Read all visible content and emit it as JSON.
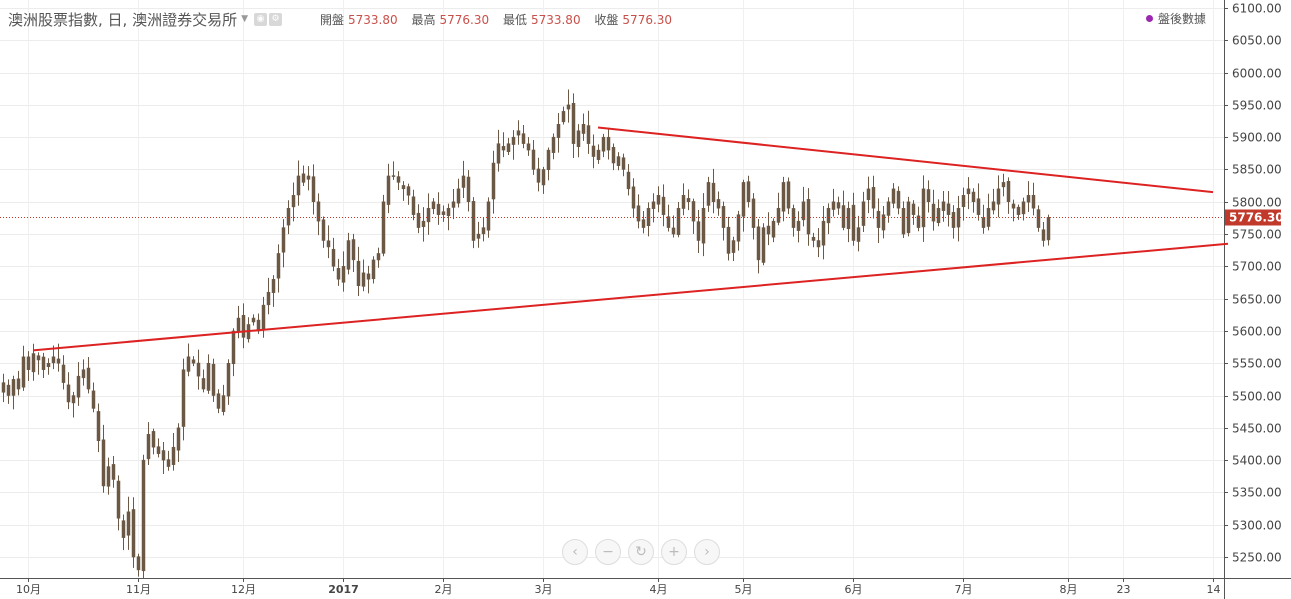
{
  "header": {
    "title": "澳洲股票指數, 日, 澳洲證券交易所",
    "open_label": "開盤",
    "open_value": "5733.80",
    "high_label": "最高",
    "high_value": "5776.30",
    "low_label": "最低",
    "low_value": "5733.80",
    "close_label": "收盤",
    "close_value": "5776.30"
  },
  "legend": {
    "label": "盤後數據"
  },
  "price_tag": "5776.30",
  "colors": {
    "candle": "#6b5845",
    "trendline": "#dd2222",
    "price_line": "#c0392b",
    "price_tag_bg": "#c0392b",
    "legend_dot": "#9c27b0"
  },
  "icons": {
    "zoom": [
      "chevron-left-icon",
      "minus-icon",
      "reset-icon",
      "plus-icon",
      "chevron-right-icon"
    ]
  },
  "chart_data": {
    "type": "candlestick",
    "y_axis": {
      "min": 5220,
      "max": 6110,
      "ticks": [
        "6100.00",
        "6050.00",
        "6000.00",
        "5950.00",
        "5900.00",
        "5850.00",
        "5800.00",
        "5750.00",
        "5700.00",
        "5650.00",
        "5600.00",
        "5550.00",
        "5500.00",
        "5450.00",
        "5400.00",
        "5350.00",
        "5300.00",
        "5250.00"
      ]
    },
    "x_axis": {
      "labels": [
        {
          "t": "10月",
          "i": 5,
          "bold": false
        },
        {
          "t": "11月",
          "i": 27,
          "bold": false
        },
        {
          "t": "12月",
          "i": 48,
          "bold": false
        },
        {
          "t": "2017",
          "i": 68,
          "bold": true
        },
        {
          "t": "2月",
          "i": 88,
          "bold": false
        },
        {
          "t": "3月",
          "i": 108,
          "bold": false
        },
        {
          "t": "4月",
          "i": 131,
          "bold": false
        },
        {
          "t": "5月",
          "i": 148,
          "bold": false
        },
        {
          "t": "6月",
          "i": 170,
          "bold": false
        },
        {
          "t": "7月",
          "i": 192,
          "bold": false
        },
        {
          "t": "8月",
          "i": 213,
          "bold": false
        },
        {
          "t": "23",
          "i": 224,
          "bold": false
        },
        {
          "t": "14",
          "i": 242,
          "bold": false
        }
      ]
    },
    "closes": [
      5520,
      5500,
      5525,
      5510,
      5560,
      5540,
      5565,
      5555,
      5540,
      5550,
      5560,
      5550,
      5520,
      5490,
      5500,
      5530,
      5540,
      5510,
      5480,
      5430,
      5360,
      5390,
      5370,
      5310,
      5280,
      5320,
      5250,
      5230,
      5400,
      5440,
      5420,
      5410,
      5400,
      5390,
      5420,
      5450,
      5540,
      5560,
      5550,
      5530,
      5510,
      5550,
      5500,
      5480,
      5500,
      5550,
      5600,
      5620,
      5590,
      5610,
      5620,
      5600,
      5640,
      5660,
      5680,
      5720,
      5760,
      5790,
      5810,
      5840,
      5830,
      5840,
      5800,
      5770,
      5740,
      5730,
      5700,
      5680,
      5700,
      5740,
      5710,
      5670,
      5690,
      5680,
      5710,
      5720,
      5800,
      5840,
      5840,
      5830,
      5820,
      5810,
      5780,
      5760,
      5770,
      5790,
      5800,
      5780,
      5780,
      5790,
      5800,
      5820,
      5840,
      5800,
      5740,
      5750,
      5760,
      5800,
      5860,
      5890,
      5880,
      5890,
      5900,
      5910,
      5890,
      5880,
      5850,
      5830,
      5850,
      5880,
      5900,
      5920,
      5940,
      5950,
      5890,
      5910,
      5920,
      5890,
      5870,
      5880,
      5900,
      5880,
      5860,
      5870,
      5850,
      5820,
      5790,
      5770,
      5760,
      5790,
      5800,
      5810,
      5780,
      5760,
      5750,
      5790,
      5810,
      5800,
      5770,
      5740,
      5790,
      5830,
      5800,
      5790,
      5760,
      5720,
      5740,
      5780,
      5830,
      5800,
      5760,
      5710,
      5760,
      5750,
      5770,
      5790,
      5830,
      5790,
      5760,
      5770,
      5800,
      5750,
      5740,
      5730,
      5770,
      5790,
      5800,
      5790,
      5760,
      5790,
      5740,
      5760,
      5800,
      5820,
      5790,
      5760,
      5780,
      5800,
      5820,
      5790,
      5750,
      5800,
      5780,
      5760,
      5820,
      5800,
      5770,
      5790,
      5800,
      5780,
      5760,
      5790,
      5810,
      5820,
      5800,
      5780,
      5760,
      5790,
      5800,
      5820,
      5830,
      5800,
      5790,
      5780,
      5800,
      5810,
      5790,
      5760,
      5740,
      5776
    ],
    "trendlines": [
      {
        "name": "support",
        "from": {
          "i": 6,
          "p": 5570
        },
        "to": {
          "i": 245,
          "p": 5735
        }
      },
      {
        "name": "resistance",
        "from": {
          "i": 119,
          "p": 5915
        },
        "to": {
          "i": 242,
          "p": 5815
        }
      }
    ],
    "last_price": 5776.3,
    "grid": true
  }
}
